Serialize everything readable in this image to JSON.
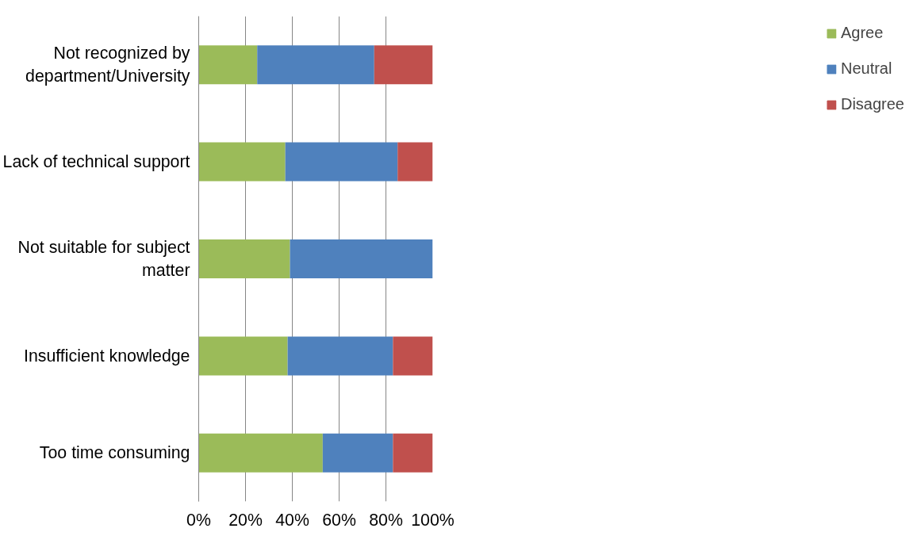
{
  "chart_data": {
    "type": "bar",
    "orientation": "horizontal",
    "stacked": true,
    "categories": [
      "Not recognized by department/University",
      "Lack of technical support",
      "Not suitable for subject matter",
      "Insufficient knowledge",
      "Too time consuming"
    ],
    "series": [
      {
        "name": "Agree",
        "color": "#9bbb59",
        "values": [
          25,
          37,
          39,
          38,
          53
        ]
      },
      {
        "name": "Neutral",
        "color": "#4f81bd",
        "values": [
          50,
          48,
          61,
          45,
          30
        ]
      },
      {
        "name": "Disagree",
        "color": "#c0504d",
        "values": [
          25,
          15,
          0,
          17,
          17
        ]
      }
    ],
    "xlim": [
      0,
      100
    ],
    "xticks": [
      {
        "value": 0,
        "label": "0%"
      },
      {
        "value": 20,
        "label": "20%"
      },
      {
        "value": 40,
        "label": "40%"
      },
      {
        "value": 60,
        "label": "60%"
      },
      {
        "value": 80,
        "label": "80%"
      },
      {
        "value": 100,
        "label": "100%"
      }
    ],
    "grid": "x",
    "legend": "right"
  }
}
